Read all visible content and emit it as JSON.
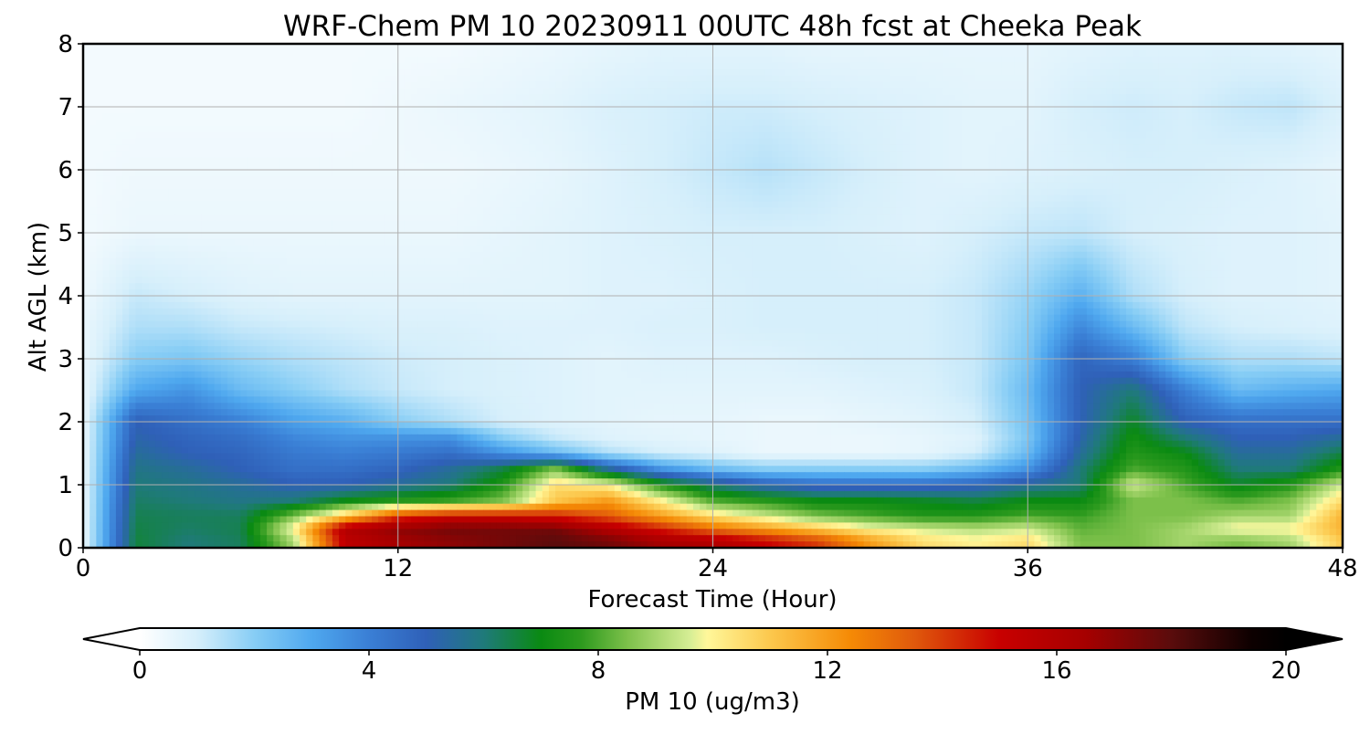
{
  "chart_data": {
    "type": "heatmap",
    "title": "WRF-Chem PM 10  20230911 00UTC 48h fcst at Cheeka Peak",
    "xlabel": "Forecast Time (Hour)",
    "ylabel": "Alt AGL (km)",
    "xlim": [
      0,
      48
    ],
    "ylim": [
      0,
      8
    ],
    "xticks": [
      0,
      12,
      24,
      36,
      48
    ],
    "yticks": [
      0,
      1,
      2,
      3,
      4,
      5,
      6,
      7,
      8
    ],
    "grid": true,
    "colorbar": {
      "label": "PM 10  (ug/m3)",
      "range": [
        0,
        20
      ],
      "ticks": [
        0,
        4,
        8,
        12,
        16,
        20
      ],
      "extend": "both",
      "orientation": "horizontal",
      "stops": [
        {
          "v": 0,
          "color": "#ffffff"
        },
        {
          "v": 1,
          "color": "#d6effb"
        },
        {
          "v": 2,
          "color": "#87cdf5"
        },
        {
          "v": 3,
          "color": "#4fa8ef"
        },
        {
          "v": 4,
          "color": "#3a7fd5"
        },
        {
          "v": 5,
          "color": "#2f60b8"
        },
        {
          "v": 6,
          "color": "#1f7a7a"
        },
        {
          "v": 7,
          "color": "#0a8a12"
        },
        {
          "v": 7.7,
          "color": "#2d9a1e"
        },
        {
          "v": 8.5,
          "color": "#7cc04a"
        },
        {
          "v": 9.6,
          "color": "#d6ee95"
        },
        {
          "v": 9.9,
          "color": "#fff79a"
        },
        {
          "v": 11,
          "color": "#fcc84d"
        },
        {
          "v": 12.4,
          "color": "#f58a05"
        },
        {
          "v": 13.5,
          "color": "#e05a0c"
        },
        {
          "v": 15,
          "color": "#c80000"
        },
        {
          "v": 16.5,
          "color": "#a60000"
        },
        {
          "v": 18,
          "color": "#5a0c0c"
        },
        {
          "v": 19.4,
          "color": "#0d0000"
        },
        {
          "v": 20,
          "color": "#000000"
        }
      ]
    },
    "data": {
      "hours": [
        0,
        2,
        4,
        6,
        8,
        10,
        12,
        14,
        16,
        18,
        20,
        22,
        24,
        26,
        28,
        30,
        32,
        34,
        36,
        38,
        40,
        42,
        44,
        46,
        48
      ],
      "altitudes_km": [
        0.1,
        0.3,
        0.5,
        0.75,
        1.0,
        1.25,
        1.5,
        1.75,
        2.0,
        2.5,
        3.0,
        3.5,
        4.0,
        5.0,
        6.0,
        7.0,
        8.0
      ],
      "values": [
        [
          0.5,
          6.6,
          6.0,
          6.3,
          9.0,
          15.5,
          16.5,
          17.0,
          17.5,
          18.0,
          17.5,
          16.5,
          16.0,
          15.0,
          14.0,
          12.0,
          10.5,
          10.0,
          10.5,
          8.5,
          8.5,
          9.0,
          8.5,
          9.0,
          11.0
        ],
        [
          0.5,
          6.5,
          6.2,
          6.4,
          10.0,
          16.0,
          17.0,
          17.5,
          17.5,
          17.5,
          16.0,
          14.5,
          13.0,
          12.0,
          11.0,
          10.0,
          9.5,
          9.2,
          9.5,
          8.2,
          8.5,
          9.0,
          10.0,
          10.0,
          11.5
        ],
        [
          0.5,
          6.4,
          6.3,
          6.3,
          8.5,
          11.0,
          14.0,
          15.0,
          15.0,
          14.5,
          13.5,
          12.0,
          10.5,
          9.5,
          8.5,
          8.0,
          7.5,
          7.5,
          8.0,
          7.8,
          8.5,
          8.5,
          9.0,
          9.0,
          11.5
        ],
        [
          0.5,
          6.2,
          6.0,
          5.8,
          6.0,
          7.0,
          7.5,
          7.8,
          8.5,
          11.0,
          12.0,
          10.0,
          8.0,
          7.5,
          7.0,
          7.0,
          6.8,
          6.5,
          7.0,
          7.0,
          8.5,
          8.5,
          8.0,
          8.5,
          10.5
        ],
        [
          0.5,
          6.0,
          5.8,
          5.5,
          5.0,
          5.0,
          5.5,
          6.0,
          7.5,
          10.5,
          10.0,
          7.5,
          6.0,
          5.0,
          4.5,
          4.5,
          4.5,
          4.8,
          5.5,
          6.0,
          9.5,
          8.0,
          6.8,
          7.5,
          9.5
        ],
        [
          0.5,
          5.8,
          5.5,
          5.0,
          4.5,
          4.5,
          4.8,
          5.5,
          6.5,
          8.5,
          5.5,
          3.5,
          2.5,
          2.0,
          2.0,
          2.0,
          2.0,
          2.5,
          3.5,
          6.0,
          8.0,
          7.5,
          6.0,
          6.0,
          7.5
        ],
        [
          0.5,
          5.5,
          5.0,
          4.8,
          4.2,
          4.0,
          4.2,
          4.5,
          3.5,
          2.5,
          1.5,
          1.0,
          0.8,
          0.5,
          0.5,
          0.5,
          0.6,
          1.0,
          2.5,
          5.5,
          7.5,
          7.0,
          5.5,
          5.5,
          6.5
        ],
        [
          0.5,
          5.2,
          4.8,
          4.5,
          3.8,
          3.5,
          3.5,
          3.5,
          2.0,
          1.2,
          0.8,
          0.7,
          0.6,
          0.5,
          0.5,
          0.5,
          0.6,
          0.8,
          2.2,
          5.2,
          7.2,
          6.0,
          5.0,
          5.0,
          5.5
        ],
        [
          0.5,
          5.0,
          4.5,
          4.0,
          3.2,
          2.8,
          2.0,
          1.5,
          1.0,
          0.8,
          0.7,
          0.6,
          0.6,
          0.5,
          0.5,
          0.6,
          0.7,
          1.0,
          2.3,
          5.0,
          6.8,
          5.0,
          4.5,
          4.5,
          4.5
        ],
        [
          0.5,
          3.0,
          3.5,
          2.5,
          2.0,
          1.5,
          1.2,
          1.0,
          0.9,
          0.8,
          0.7,
          0.7,
          0.7,
          0.7,
          0.7,
          0.8,
          0.9,
          1.2,
          2.5,
          5.0,
          6.0,
          4.0,
          2.5,
          2.8,
          3.0
        ],
        [
          0.5,
          2.0,
          2.2,
          1.8,
          1.5,
          1.3,
          1.1,
          1.0,
          0.9,
          0.8,
          0.7,
          0.8,
          0.8,
          0.8,
          0.9,
          1.0,
          1.0,
          1.2,
          2.2,
          4.8,
          4.0,
          2.0,
          1.5,
          1.5,
          1.3
        ],
        [
          0.5,
          1.5,
          1.5,
          1.2,
          1.1,
          1.0,
          0.9,
          0.9,
          0.8,
          0.8,
          0.8,
          0.9,
          0.9,
          1.0,
          1.0,
          1.0,
          1.0,
          1.2,
          2.0,
          3.8,
          2.5,
          1.3,
          1.0,
          0.9,
          0.8
        ],
        [
          0.4,
          1.2,
          1.0,
          0.8,
          0.7,
          0.7,
          0.7,
          0.7,
          0.7,
          0.7,
          0.8,
          0.8,
          0.9,
          1.0,
          1.0,
          1.0,
          1.0,
          1.2,
          1.8,
          2.8,
          1.5,
          1.0,
          0.8,
          0.8,
          0.7
        ],
        [
          0.3,
          0.5,
          0.5,
          0.5,
          0.5,
          0.5,
          0.5,
          0.5,
          0.6,
          0.7,
          0.8,
          0.9,
          1.0,
          1.0,
          1.0,
          0.9,
          0.8,
          1.0,
          1.2,
          1.3,
          1.0,
          0.9,
          0.8,
          0.8,
          0.7
        ],
        [
          0.3,
          0.4,
          0.4,
          0.4,
          0.4,
          0.4,
          0.4,
          0.4,
          0.5,
          0.6,
          0.8,
          1.0,
          1.2,
          1.4,
          1.2,
          1.0,
          0.8,
          0.7,
          0.8,
          0.9,
          1.0,
          1.0,
          0.9,
          0.8,
          0.6
        ],
        [
          0.3,
          0.3,
          0.3,
          0.3,
          0.3,
          0.3,
          0.4,
          0.5,
          0.6,
          0.7,
          0.9,
          1.0,
          1.1,
          1.1,
          1.0,
          0.9,
          0.8,
          0.7,
          0.7,
          1.0,
          1.1,
          1.0,
          1.2,
          1.3,
          0.9
        ],
        [
          0.3,
          0.3,
          0.3,
          0.3,
          0.3,
          0.3,
          0.3,
          0.3,
          0.4,
          0.5,
          0.6,
          0.7,
          0.7,
          0.7,
          0.6,
          0.6,
          0.6,
          0.6,
          0.6,
          0.7,
          0.8,
          0.8,
          0.8,
          0.7,
          0.6
        ]
      ]
    }
  }
}
